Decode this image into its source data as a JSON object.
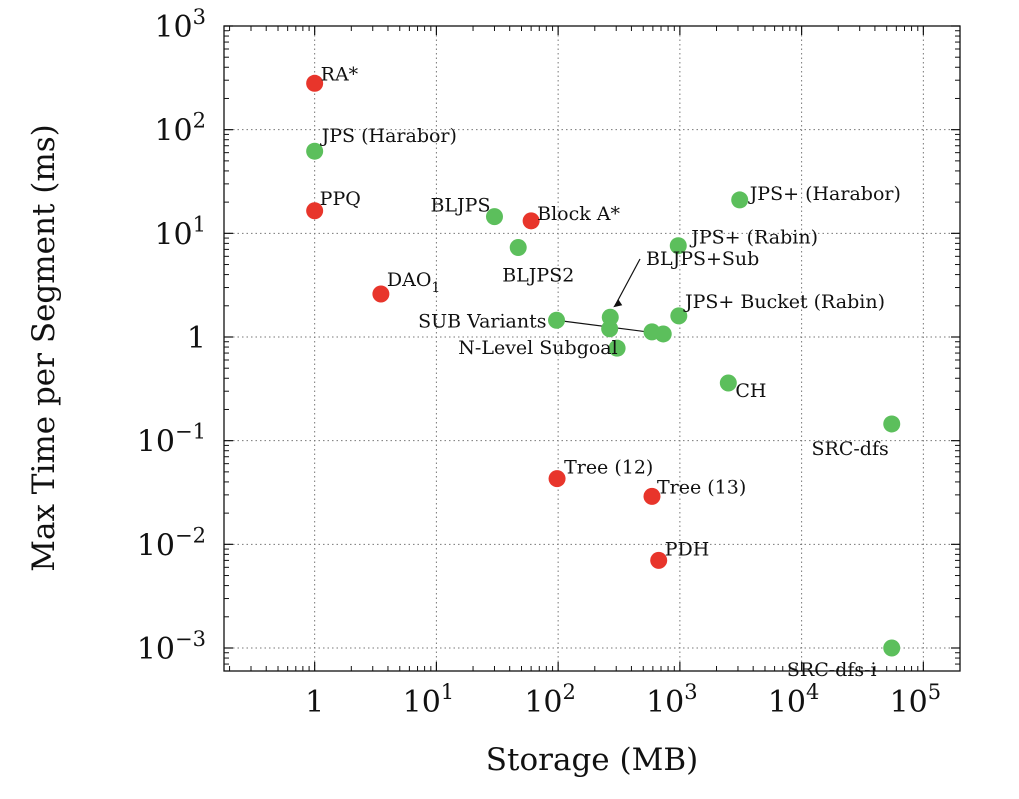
{
  "chart_data": {
    "type": "scatter",
    "xlabel": "Storage (MB)",
    "ylabel": "Max Time per Segment (ms)",
    "xscale": "log",
    "yscale": "log",
    "xlim": [
      0.18,
      200000
    ],
    "ylim": [
      0.0006,
      1000
    ],
    "grid": true,
    "x_ticks": [
      {
        "value": 1,
        "base": "1",
        "exp": ""
      },
      {
        "value": 10,
        "base": "10",
        "exp": "1"
      },
      {
        "value": 100,
        "base": "10",
        "exp": "2"
      },
      {
        "value": 1000,
        "base": "10",
        "exp": "3"
      },
      {
        "value": 10000,
        "base": "10",
        "exp": "4"
      },
      {
        "value": 100000,
        "base": "10",
        "exp": "5"
      }
    ],
    "y_ticks": [
      {
        "value": 0.001,
        "base": "10",
        "exp": "−3"
      },
      {
        "value": 0.01,
        "base": "10",
        "exp": "−2"
      },
      {
        "value": 0.1,
        "base": "10",
        "exp": "−1"
      },
      {
        "value": 1,
        "base": "1",
        "exp": ""
      },
      {
        "value": 10,
        "base": "10",
        "exp": "1"
      },
      {
        "value": 100,
        "base": "10",
        "exp": "2"
      },
      {
        "value": 1000,
        "base": "10",
        "exp": "3"
      }
    ],
    "colors": {
      "red": "#e8352b",
      "green": "#5cbf5c"
    },
    "points": [
      {
        "label": "RA*",
        "x": 1.0,
        "y": 280,
        "color": "red"
      },
      {
        "label": "JPS (Harabor)",
        "x": 1.0,
        "y": 62,
        "color": "green"
      },
      {
        "label": "PPQ",
        "x": 1.0,
        "y": 16.5,
        "color": "red"
      },
      {
        "label": "BLJPS",
        "x": 30,
        "y": 14.5,
        "color": "green"
      },
      {
        "label": "Block A*",
        "x": 60,
        "y": 13.2,
        "color": "red"
      },
      {
        "label": "BLJPS2",
        "x": 47,
        "y": 7.3,
        "color": "green"
      },
      {
        "label": "JPS+ (Harabor)",
        "x": 3100,
        "y": 21,
        "color": "green"
      },
      {
        "label": "JPS+ (Rabin)",
        "x": 970,
        "y": 7.6,
        "color": "green"
      },
      {
        "label": "DAO1",
        "x": 3.5,
        "y": 2.6,
        "color": "red"
      },
      {
        "label": "",
        "x": 97,
        "y": 1.45,
        "color": "green"
      },
      {
        "label": "",
        "x": 268,
        "y": 1.55,
        "color": "green"
      },
      {
        "label": "",
        "x": 265,
        "y": 1.2,
        "color": "green"
      },
      {
        "label": "",
        "x": 305,
        "y": 0.78,
        "color": "green"
      },
      {
        "label": "",
        "x": 590,
        "y": 1.12,
        "color": "green"
      },
      {
        "label": "",
        "x": 730,
        "y": 1.07,
        "color": "green"
      },
      {
        "label": "",
        "x": 980,
        "y": 1.6,
        "color": "green"
      },
      {
        "label": "CH",
        "x": 2500,
        "y": 0.36,
        "color": "green"
      },
      {
        "label": "SRC-dfs",
        "x": 55000,
        "y": 0.145,
        "color": "green"
      },
      {
        "label": "Tree (12)",
        "x": 98,
        "y": 0.043,
        "color": "red"
      },
      {
        "label": "Tree (13)",
        "x": 590,
        "y": 0.029,
        "color": "red"
      },
      {
        "label": "PDH",
        "x": 670,
        "y": 0.007,
        "color": "red"
      },
      {
        "label": "SRC-dfs-i",
        "x": 55000,
        "y": 0.001,
        "color": "green"
      }
    ],
    "annotations": [
      {
        "label": "BLJPS+Sub"
      },
      {
        "label": "SUB Variants"
      },
      {
        "label": "JPS+ Bucket (Rabin)"
      },
      {
        "label": "N-Level Subgoal"
      }
    ]
  }
}
